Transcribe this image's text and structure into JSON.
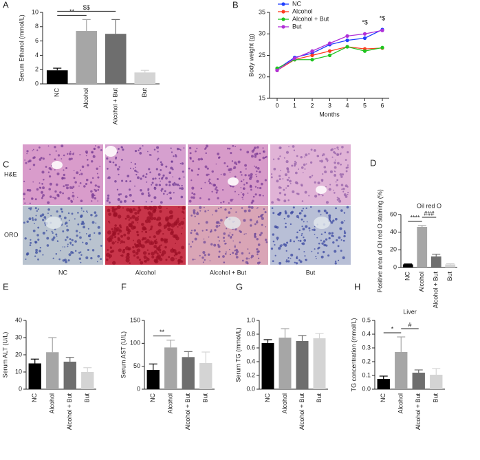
{
  "chart_data": [
    {
      "type": "bar",
      "panel": "A",
      "ylabel": "Serum Ethanol (mmol/L)",
      "categories": [
        "NC",
        "Alcohol",
        "Alcohol + But",
        "But"
      ],
      "values": [
        1.9,
        7.4,
        7.0,
        1.6
      ],
      "errors": [
        0.3,
        1.6,
        2.0,
        0.3
      ],
      "colors": [
        "#000000",
        "#a6a6a6",
        "#6e6e6e",
        "#d4d4d4"
      ],
      "ylim": [
        0,
        10
      ],
      "yticks": [
        0,
        2,
        4,
        6,
        8,
        10
      ],
      "annotations": [
        {
          "text": "**",
          "span": [
            0,
            1
          ]
        },
        {
          "text": "$$",
          "span": [
            0,
            2
          ]
        }
      ]
    },
    {
      "type": "line",
      "panel": "B",
      "ylabel": "Body weight (g)",
      "xlabel": "Months",
      "x": [
        0,
        1,
        2,
        3,
        4,
        5,
        6
      ],
      "xlim": [
        0,
        6
      ],
      "xticks": [
        0,
        1,
        2,
        3,
        4,
        5,
        6
      ],
      "ylim": [
        15,
        35
      ],
      "yticks": [
        15,
        20,
        25,
        30,
        35
      ],
      "series": [
        {
          "name": "NC",
          "color": "#1f3fff",
          "values": [
            21.8,
            24.5,
            25.5,
            27.5,
            28.5,
            29.0,
            31.0
          ]
        },
        {
          "name": "Alcohol",
          "color": "#ff3b1f",
          "values": [
            21.5,
            24.0,
            25.0,
            26.0,
            27.0,
            26.5,
            26.7
          ]
        },
        {
          "name": "Alcohol + But",
          "color": "#1fc41f",
          "values": [
            22.0,
            24.0,
            24.0,
            25.0,
            27.0,
            26.0,
            26.8
          ]
        },
        {
          "name": "But",
          "color": "#b030d8",
          "values": [
            21.5,
            24.3,
            26.0,
            27.8,
            29.5,
            30.0,
            30.8
          ]
        }
      ],
      "annotations": [
        {
          "text": "*$",
          "x": 5
        },
        {
          "text": "*$",
          "x": 6
        }
      ]
    },
    {
      "type": "bar",
      "panel": "D",
      "title": "Oil red O",
      "ylabel": "Positive area of Oil red O staining (%)",
      "categories": [
        "NC",
        "Alcohol",
        "Alcohol + But",
        "But"
      ],
      "values": [
        3.5,
        46,
        12.5,
        3.5
      ],
      "errors": [
        0.5,
        1.5,
        2.5,
        0.8
      ],
      "colors": [
        "#000000",
        "#a6a6a6",
        "#6e6e6e",
        "#d4d4d4"
      ],
      "ylim": [
        0,
        60
      ],
      "yticks": [
        0,
        20,
        40,
        60
      ],
      "annotations": [
        {
          "text": "****",
          "span": [
            0,
            1
          ]
        },
        {
          "text": "###",
          "span": [
            1,
            2
          ]
        }
      ]
    },
    {
      "type": "bar",
      "panel": "E",
      "ylabel": "Serum ALT (U/L)",
      "categories": [
        "NC",
        "Alcohol",
        "Alcohol + But",
        "But"
      ],
      "values": [
        15,
        21.5,
        16,
        10
      ],
      "errors": [
        2.5,
        8.5,
        2.5,
        2.5
      ],
      "colors": [
        "#000000",
        "#a6a6a6",
        "#6e6e6e",
        "#d4d4d4"
      ],
      "ylim": [
        0,
        40
      ],
      "yticks": [
        0,
        10,
        20,
        30,
        40
      ],
      "annotations": []
    },
    {
      "type": "bar",
      "panel": "F",
      "ylabel": "Serum AST (U/L)",
      "categories": [
        "NC",
        "Alcohol",
        "Alcohol + But",
        "But"
      ],
      "values": [
        42,
        91,
        70,
        57
      ],
      "errors": [
        13,
        16,
        12,
        24
      ],
      "colors": [
        "#000000",
        "#a6a6a6",
        "#6e6e6e",
        "#d4d4d4"
      ],
      "ylim": [
        0,
        150
      ],
      "yticks": [
        0,
        50,
        100,
        150
      ],
      "annotations": [
        {
          "text": "**",
          "span": [
            0,
            1
          ]
        }
      ]
    },
    {
      "type": "bar",
      "panel": "G",
      "ylabel": "Serum TG (mmol/L)",
      "categories": [
        "NC",
        "Alcohol",
        "Alcohol + But",
        "But"
      ],
      "values": [
        0.67,
        0.75,
        0.7,
        0.74
      ],
      "errors": [
        0.05,
        0.13,
        0.08,
        0.07
      ],
      "colors": [
        "#000000",
        "#a6a6a6",
        "#6e6e6e",
        "#d4d4d4"
      ],
      "ylim": [
        0,
        1.0
      ],
      "yticks": [
        {
          "value": 0,
          "label": "0.0"
        },
        0.2,
        0.4,
        0.6,
        0.8,
        {
          "value": 1,
          "label": "1.0"
        }
      ],
      "annotations": []
    },
    {
      "type": "bar",
      "panel": "H",
      "title": "Liver",
      "ylabel": "TG concentration (mmol/L)",
      "categories": [
        "NC",
        "Alcohol",
        "Alcohol + But",
        "But"
      ],
      "values": [
        0.075,
        0.27,
        0.12,
        0.105
      ],
      "errors": [
        0.02,
        0.11,
        0.02,
        0.045
      ],
      "colors": [
        "#000000",
        "#a6a6a6",
        "#6e6e6e",
        "#d4d4d4"
      ],
      "ylim": [
        0,
        0.5
      ],
      "yticks": [
        {
          "value": 0,
          "label": "0.0"
        },
        0.1,
        0.2,
        0.3,
        0.4,
        0.5
      ],
      "annotations": [
        {
          "text": "*",
          "span": [
            0,
            1
          ]
        },
        {
          "text": "#",
          "span": [
            1,
            2
          ]
        }
      ]
    }
  ],
  "image_panel": {
    "panel": "C",
    "rows": [
      "H&E",
      "ORO"
    ],
    "columns": [
      "NC",
      "Alcohol",
      "Alcohol + But",
      "But"
    ]
  }
}
